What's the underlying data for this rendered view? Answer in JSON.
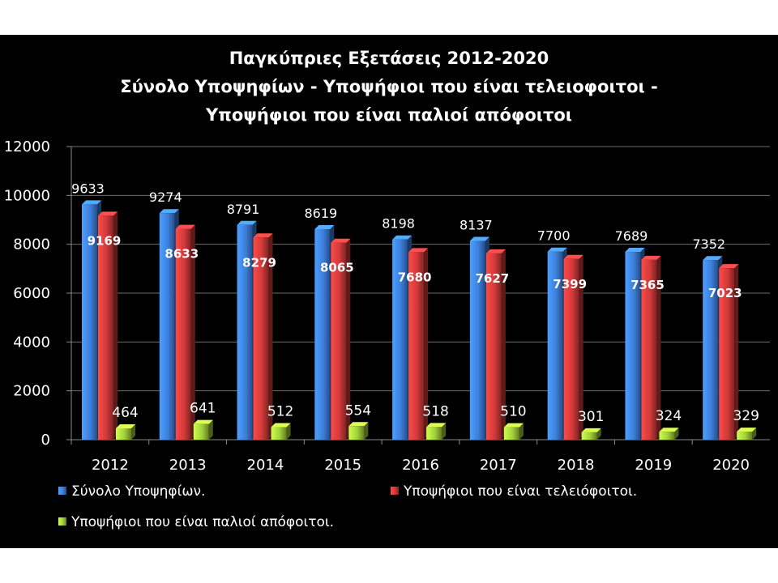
{
  "chart_data": {
    "type": "bar",
    "title": [
      "Παγκύπριες Εξετάσεις 2012-2020",
      "Σύνολο Υποψηφίων - Υποψήφιοι που είναι τελειοφοιτοι -",
      "Υποψήφιοι που είναι παλιοί απόφοιτοι"
    ],
    "categories": [
      "2012",
      "2013",
      "2014",
      "2015",
      "2016",
      "2017",
      "2018",
      "2019",
      "2020"
    ],
    "series": [
      {
        "name": "Σύνολο Υποψηφίων.",
        "color": "#3d7fdc",
        "values": [
          9633,
          9274,
          8791,
          8619,
          8198,
          8137,
          7700,
          7689,
          7352
        ]
      },
      {
        "name": "Υποψήφιοι που είναι τελειόφοιτοι.",
        "color": "#d23a3a",
        "values": [
          9169,
          8633,
          8279,
          8065,
          7680,
          7627,
          7399,
          7365,
          7023
        ]
      },
      {
        "name": "Υποψήφιοι που είναι παλιοί απόφοιτοι.",
        "color": "#a3d13c",
        "values": [
          464,
          641,
          512,
          554,
          518,
          510,
          301,
          324,
          329
        ]
      }
    ],
    "ylim": [
      0,
      12000
    ],
    "yticks": [
      "0",
      "2000",
      "4000",
      "6000",
      "8000",
      "10000",
      "12000"
    ],
    "grid": true,
    "legend_position": "bottom",
    "xlabel": "",
    "ylabel": ""
  }
}
